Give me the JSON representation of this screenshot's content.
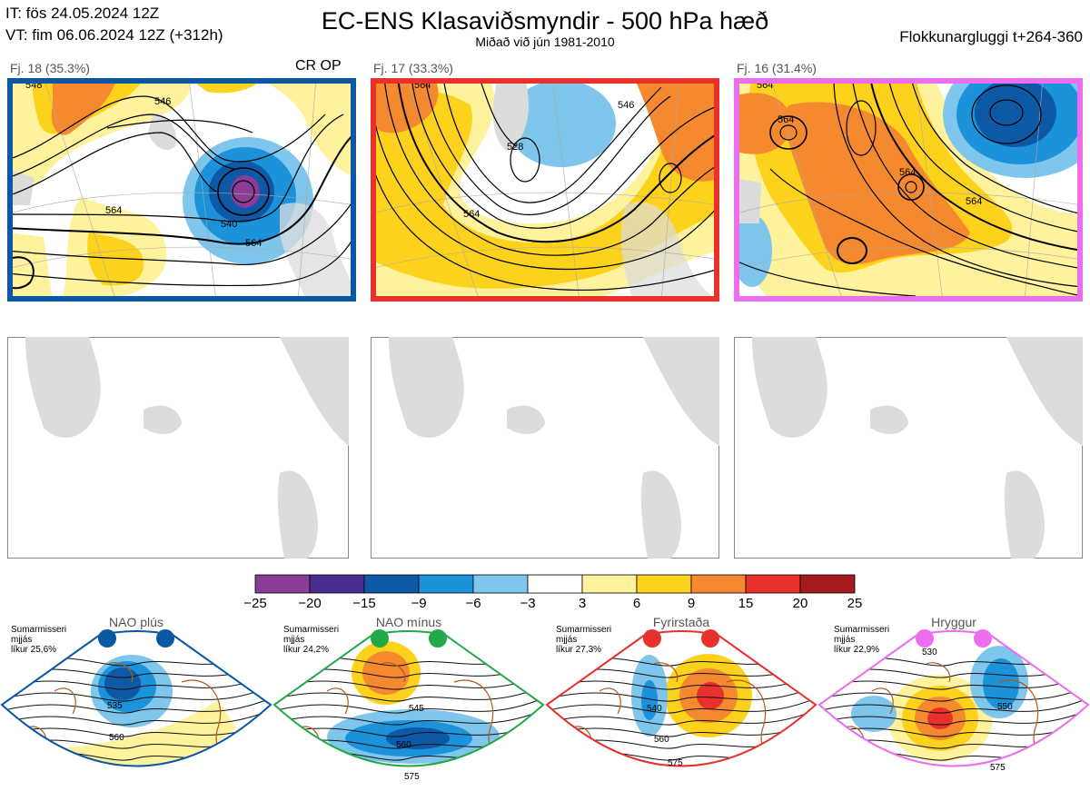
{
  "header": {
    "init_time": "IT: fös 24.05.2024 12Z",
    "valid_time": "VT: fim 06.06.2024 12Z  (+312h)",
    "title": "EC-ENS Klasaviðsmyndir - 500 hPa hæð",
    "subtitle": "Miðað við jún 1981-2010",
    "cluster_window": "Flokkunargluggi t+264-360"
  },
  "clusters": [
    {
      "label": "Fj. 18 (35.3%)",
      "tag": "CR OP",
      "border_color": "#0a58a3",
      "contour_labels": [
        "548",
        "546",
        "540",
        "564",
        "564"
      ]
    },
    {
      "label": "Fj. 17 (33.3%)",
      "tag": "",
      "border_color": "#e8302c",
      "contour_labels": [
        "564",
        "528",
        "546",
        "564"
      ]
    },
    {
      "label": "Fj. 16 (31.4%)",
      "tag": "",
      "border_color": "#ec6ded",
      "contour_labels": [
        "564",
        "564",
        "564",
        "564"
      ]
    }
  ],
  "colorbar": {
    "labels": [
      "−25",
      "−20",
      "−15",
      "−9",
      "−6",
      "−3",
      "3",
      "6",
      "9",
      "15",
      "20",
      "25"
    ],
    "colors": [
      "#8a3d96",
      "#4a2b8f",
      "#0d59a5",
      "#1b92da",
      "#7fc6ec",
      "#ffffff",
      "#fff29c",
      "#fdd21c",
      "#f5892f",
      "#e8302c",
      "#a51a1e"
    ]
  },
  "chart_data": {
    "type": "heatmap",
    "title": "EC-ENS Klasaviðsmyndir - 500 hPa hæð",
    "colorbar_range": [
      -25,
      25
    ],
    "colorbar_boundaries": [
      -25,
      -20,
      -15,
      -9,
      -6,
      -3,
      3,
      6,
      9,
      15,
      20,
      25
    ],
    "clusters": [
      {
        "name": "Fj. 18",
        "percent": 35.3
      },
      {
        "name": "Fj. 17",
        "percent": 33.3
      },
      {
        "name": "Fj. 16",
        "percent": 31.4
      }
    ],
    "regimes": [
      {
        "name": "NAO plús",
        "probability": "25,6%"
      },
      {
        "name": "NAO mínus",
        "probability": "24,2%"
      },
      {
        "name": "Fyrirstaða",
        "probability": "27,3%"
      },
      {
        "name": "Hryggur",
        "probability": "22,9%"
      }
    ]
  },
  "regimes": [
    {
      "name": "NAO plús",
      "info": [
        "Sumarmisseri",
        "mjjás",
        "líkur 25,6%"
      ],
      "color": "#0a58a3",
      "labels": [
        "535",
        "560"
      ]
    },
    {
      "name": "NAO mínus",
      "info": [
        "Sumarmisseri",
        "mjjás",
        "líkur 24,2%"
      ],
      "color": "#23a84a",
      "labels": [
        "545",
        "560",
        "575"
      ]
    },
    {
      "name": "Fyrirstaða",
      "info": [
        "Sumarmisseri",
        "mjjás",
        "líkur 27,3%"
      ],
      "color": "#e8302c",
      "labels": [
        "540",
        "560",
        "575"
      ]
    },
    {
      "name": "Hryggur",
      "info": [
        "Sumarmisseri",
        "mjjás",
        "líkur 22,9%"
      ],
      "color": "#ec6ded",
      "labels": [
        "530",
        "550",
        "575"
      ]
    }
  ]
}
